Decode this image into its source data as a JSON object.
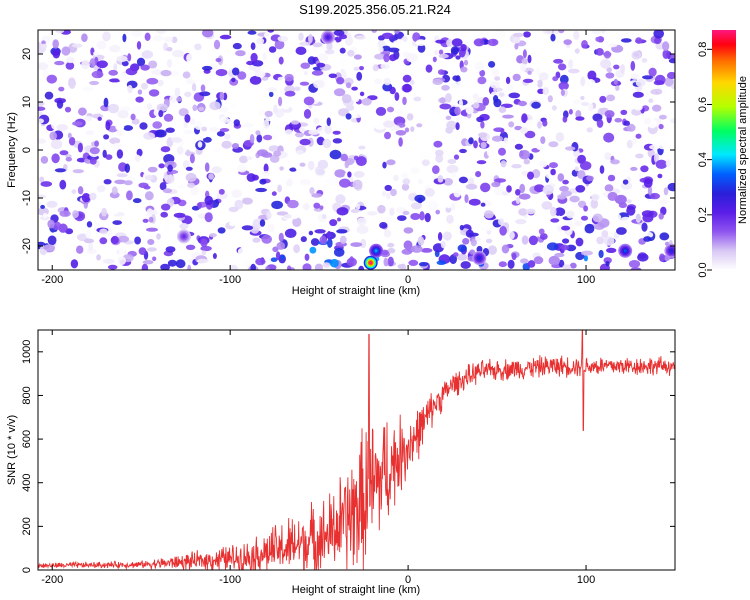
{
  "figure": {
    "title": "S199.2025.356.05.21.R24"
  },
  "chart_data": [
    {
      "type": "heatmap",
      "xlabel": "Height of straight line (km)",
      "ylabel": "Frequency (Hz)",
      "xlim": [
        -208,
        150
      ],
      "ylim": [
        -25,
        25
      ],
      "xticks": [
        -200,
        -100,
        0,
        100
      ],
      "yticks": [
        -20,
        -10,
        0,
        10,
        20
      ],
      "colorbar": {
        "label": "Normalized spectral amplitude",
        "range": [
          0,
          0.87
        ],
        "ticks": [
          0.0,
          0.2,
          0.4,
          0.6,
          0.8
        ],
        "colormap": [
          "#ffffff",
          "#d8c8f4",
          "#8f55ef",
          "#5a1ee8",
          "#2a1fd8",
          "#0060ff",
          "#00e8ff",
          "#00ff60",
          "#b4ff00",
          "#ffd800",
          "#ff7000",
          "#ff0010",
          "#ff1880"
        ]
      },
      "hotspots": [
        {
          "x": -18,
          "y": -21,
          "value": 0.4
        },
        {
          "x": -21,
          "y": -23.5,
          "value": 0.87
        },
        {
          "x": -45,
          "y": 23.5,
          "value": 0.25
        },
        {
          "x": 40,
          "y": -22.5,
          "value": 0.3
        },
        {
          "x": 122,
          "y": -21,
          "value": 0.35
        },
        {
          "x": 148,
          "y": -21,
          "value": 0.3
        },
        {
          "x": -126,
          "y": -18,
          "value": 0.2
        }
      ],
      "noise_free_band": {
        "x": [
          -25,
          -17
        ]
      }
    },
    {
      "type": "line",
      "xlabel": "Height of straight line (km)",
      "ylabel": "SNR (10 * v/v)",
      "xlim": [
        -208,
        150
      ],
      "ylim": [
        0,
        1100
      ],
      "xticks": [
        -200,
        -100,
        0,
        100
      ],
      "yticks": [
        0,
        200,
        400,
        600,
        800,
        1000
      ],
      "series_color": "#e83030",
      "envelope": [
        {
          "x": -208,
          "mean": 20,
          "spread": 15
        },
        {
          "x": -150,
          "mean": 25,
          "spread": 20
        },
        {
          "x": -120,
          "mean": 40,
          "spread": 50
        },
        {
          "x": -90,
          "mean": 60,
          "spread": 90
        },
        {
          "x": -65,
          "mean": 110,
          "spread": 170
        },
        {
          "x": -45,
          "mean": 160,
          "spread": 220
        },
        {
          "x": -35,
          "mean": 230,
          "spread": 300
        },
        {
          "x": -22,
          "mean": 330,
          "spread": 450
        },
        {
          "x": -15,
          "mean": 430,
          "spread": 350
        },
        {
          "x": -5,
          "mean": 520,
          "spread": 220
        },
        {
          "x": 5,
          "mean": 620,
          "spread": 150
        },
        {
          "x": 15,
          "mean": 760,
          "spread": 90
        },
        {
          "x": 25,
          "mean": 850,
          "spread": 70
        },
        {
          "x": 40,
          "mean": 910,
          "spread": 60
        },
        {
          "x": 80,
          "mean": 935,
          "spread": 60
        },
        {
          "x": 150,
          "mean": 935,
          "spread": 50
        }
      ],
      "events": [
        {
          "x": -22,
          "value": 1080
        },
        {
          "x": 98,
          "value": 1100
        },
        {
          "x": 98.5,
          "value": 640
        }
      ]
    }
  ]
}
